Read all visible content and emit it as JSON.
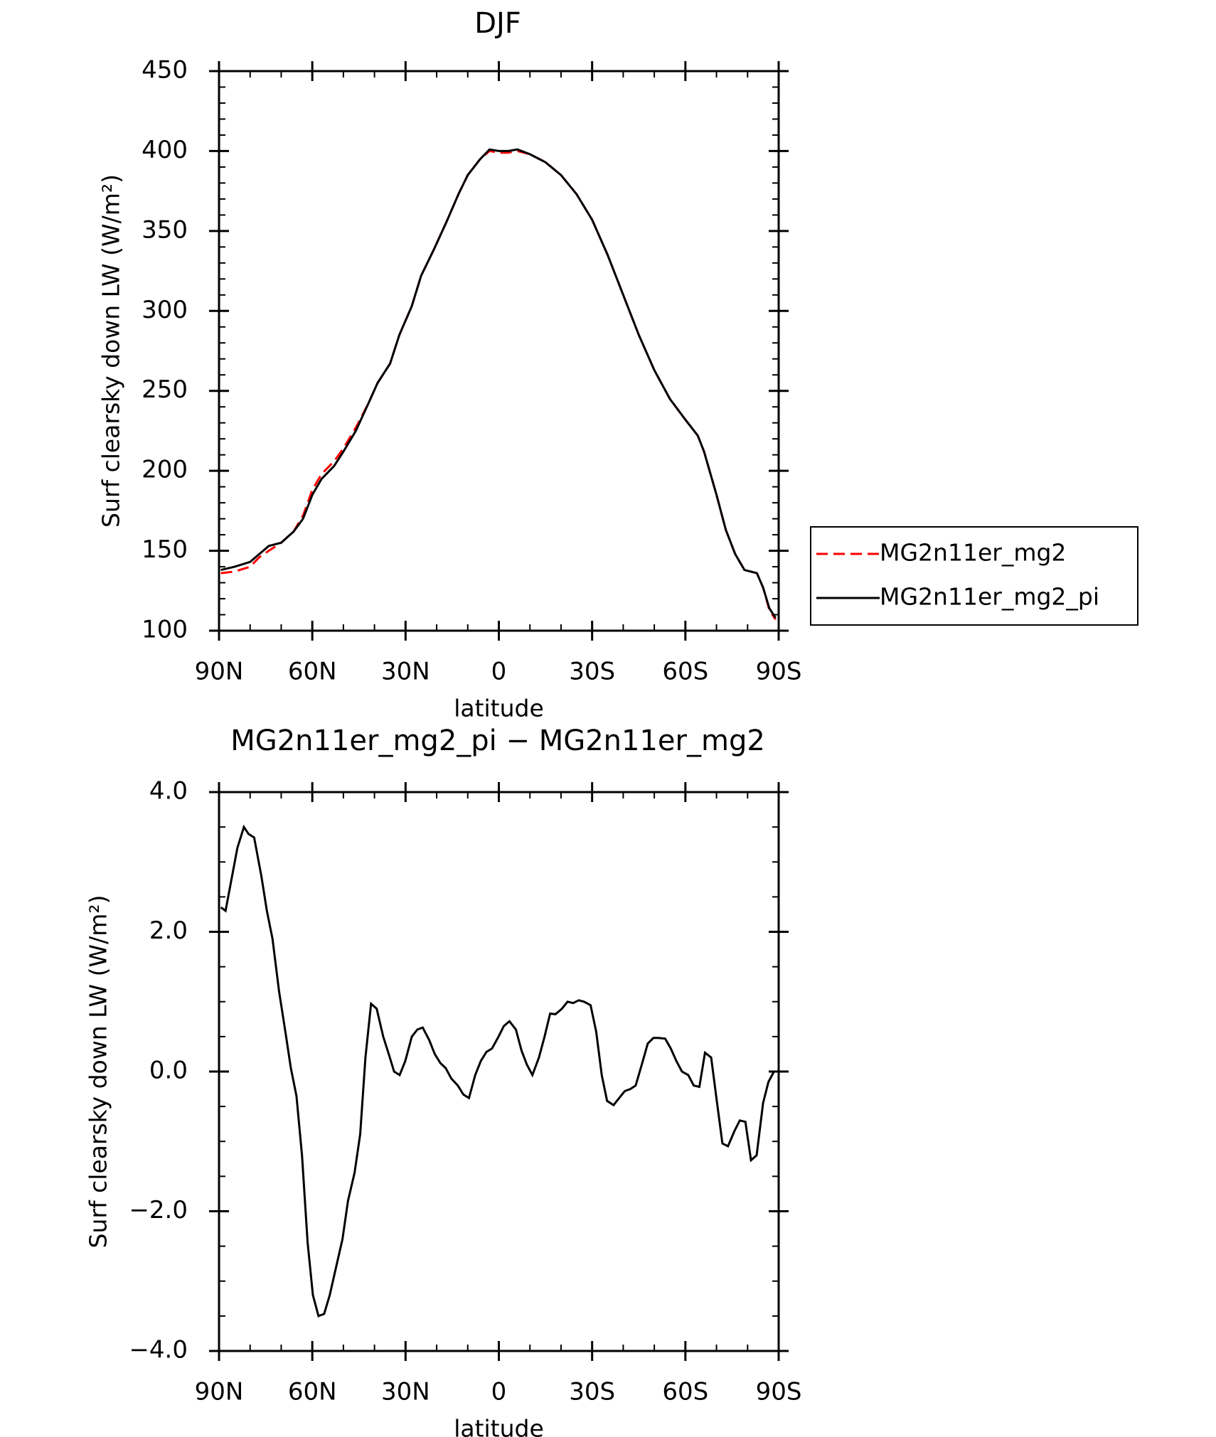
{
  "chart_data": [
    {
      "type": "line",
      "title": "DJF",
      "x_label": "latitude",
      "y_label": "Surf clearsky down LW (W/m²)",
      "x": [
        89.4,
        85,
        80,
        77,
        74,
        70,
        66,
        63,
        60,
        57,
        53,
        50,
        46,
        42,
        39,
        35,
        32,
        28,
        25,
        21,
        17,
        13,
        10,
        6,
        3,
        0,
        -3,
        -6,
        -10,
        -15,
        -20,
        -25,
        -30,
        -35,
        -40,
        -45,
        -50,
        -55,
        -60,
        -64,
        -66,
        -70,
        -73,
        -76,
        -79,
        -83,
        -85,
        -87,
        -89
      ],
      "series": [
        {
          "name": "MG2n11er_mg2",
          "color": "#ff0000",
          "dashed": true,
          "values": [
            136,
            137,
            140,
            146,
            150,
            155,
            162,
            172,
            188,
            198,
            206,
            214,
            227,
            242,
            255,
            267,
            285,
            303,
            322,
            338,
            355,
            373,
            385,
            395,
            400,
            399,
            399,
            400,
            398,
            393,
            385,
            373,
            357,
            335,
            310,
            285,
            263,
            245,
            232,
            222,
            212,
            185,
            163,
            148,
            138,
            136,
            127,
            113,
            107
          ]
        },
        {
          "name": "MG2n11er_mg2_pi",
          "color": "#000000",
          "dashed": false,
          "values": [
            138,
            140,
            143,
            148,
            153,
            155,
            162,
            170,
            185,
            195,
            203,
            212,
            225,
            242,
            255,
            267,
            285,
            303,
            322,
            338,
            355,
            373,
            385,
            395,
            401,
            400,
            400,
            401,
            398,
            393,
            385,
            373,
            357,
            335,
            310,
            285,
            263,
            245,
            232,
            222,
            212,
            185,
            163,
            148,
            138,
            136,
            127,
            114,
            108
          ]
        }
      ],
      "xlim": [
        90,
        -90
      ],
      "xticks": [
        {
          "value": 90,
          "label": "90N"
        },
        {
          "value": 60,
          "label": "60N"
        },
        {
          "value": 30,
          "label": "30N"
        },
        0,
        {
          "value": -30,
          "label": "30S"
        },
        {
          "value": -60,
          "label": "60S"
        },
        {
          "value": -90,
          "label": "90S"
        }
      ],
      "xminorticks": [
        80,
        70,
        50,
        40,
        20,
        10,
        -10,
        -20,
        -40,
        -50,
        -70,
        -80
      ],
      "ylim": [
        100,
        450
      ],
      "yticks": [
        100,
        150,
        200,
        250,
        300,
        350,
        400,
        450
      ],
      "yminorticks": [
        110,
        120,
        130,
        140,
        160,
        170,
        180,
        190,
        210,
        220,
        230,
        240,
        260,
        270,
        280,
        290,
        310,
        320,
        330,
        340,
        360,
        370,
        380,
        390,
        410,
        420,
        430,
        440
      ],
      "legend": "outside-right"
    },
    {
      "type": "line",
      "title": "MG2n11er_mg2_pi − MG2n11er_mg2",
      "x_label": "latitude",
      "y_label": "Surf clearsky down LW (W/m²)",
      "x": [
        89.4,
        87.9,
        84.1,
        82.0,
        80.5,
        78.7,
        76.4,
        74.6,
        72.8,
        70.7,
        68.6,
        66.9,
        65.1,
        63.3,
        61.5,
        59.8,
        58.0,
        56.2,
        54.4,
        52.6,
        50.3,
        48.5,
        46.4,
        44.6,
        42.9,
        41.1,
        39.3,
        37.2,
        35.4,
        33.7,
        31.9,
        30.1,
        28.0,
        26.2,
        24.5,
        22.4,
        20.6,
        18.8,
        17.1,
        15.3,
        13.2,
        11.4,
        9.6,
        7.6,
        5.8,
        4.0,
        2.2,
        0.1,
        -1.6,
        -3.4,
        -5.5,
        -7.3,
        -9.0,
        -10.8,
        -12.9,
        -14.7,
        -16.5,
        -18.2,
        -20.3,
        -22.1,
        -23.9,
        -25.7,
        -27.4,
        -29.5,
        -31.3,
        -33.1,
        -34.8,
        -36.9,
        -38.7,
        -40.5,
        -42.3,
        -44.0,
        -46.1,
        -47.9,
        -49.7,
        -51.4,
        -53.5,
        -55.3,
        -57.1,
        -58.9,
        -60.9,
        -62.7,
        -64.5,
        -66.3,
        -68.3,
        -70.1,
        -71.9,
        -73.7,
        -75.8,
        -77.5,
        -79.3,
        -81.1,
        -82.9,
        -85.0,
        -86.7,
        -88.5
      ],
      "series": [
        {
          "color": "#000000",
          "dashed": false,
          "values": [
            2.35,
            2.3,
            3.2,
            3.5,
            3.4,
            3.35,
            2.8,
            2.3,
            1.9,
            1.15,
            0.55,
            0.05,
            -0.35,
            -1.2,
            -2.45,
            -3.2,
            -3.5,
            -3.47,
            -3.2,
            -2.85,
            -2.4,
            -1.85,
            -1.45,
            -0.9,
            0.2,
            0.97,
            0.9,
            0.5,
            0.25,
            0.0,
            -0.05,
            0.15,
            0.5,
            0.6,
            0.63,
            0.45,
            0.25,
            0.12,
            0.05,
            -0.1,
            -0.2,
            -0.33,
            -0.38,
            -0.05,
            0.15,
            0.28,
            0.33,
            0.5,
            0.65,
            0.72,
            0.6,
            0.3,
            0.1,
            -0.05,
            0.2,
            0.5,
            0.83,
            0.82,
            0.9,
            1.0,
            0.98,
            1.02,
            1.0,
            0.95,
            0.57,
            -0.05,
            -0.42,
            -0.48,
            -0.38,
            -0.28,
            -0.25,
            -0.2,
            0.12,
            0.4,
            0.48,
            0.48,
            0.47,
            0.33,
            0.15,
            0.0,
            -0.05,
            -0.2,
            -0.22,
            0.27,
            0.2,
            -0.42,
            -1.03,
            -1.07,
            -0.85,
            -0.7,
            -0.72,
            -1.27,
            -1.2,
            -0.45,
            -0.15,
            0.0
          ]
        }
      ],
      "xlim": [
        90,
        -90
      ],
      "xticks": [
        {
          "value": 90,
          "label": "90N"
        },
        {
          "value": 60,
          "label": "60N"
        },
        {
          "value": 30,
          "label": "30N"
        },
        0,
        {
          "value": -30,
          "label": "30S"
        },
        {
          "value": -60,
          "label": "60S"
        },
        {
          "value": -90,
          "label": "90S"
        }
      ],
      "xminorticks": [
        80,
        70,
        50,
        40,
        20,
        10,
        -10,
        -20,
        -40,
        -50,
        -70,
        -80
      ],
      "ylim": [
        -4,
        4
      ],
      "yticks": [
        {
          "value": -4,
          "label": "−4.0"
        },
        {
          "value": -2,
          "label": "−2.0"
        },
        {
          "value": 0,
          "label": "0.0"
        },
        {
          "value": 2,
          "label": "2.0"
        },
        {
          "value": 4,
          "label": "4.0"
        }
      ],
      "yminorticks": [
        -3.5,
        -3,
        -2.5,
        -1.5,
        -1,
        -0.5,
        0.5,
        1,
        1.5,
        2.5,
        3,
        3.5
      ]
    }
  ]
}
